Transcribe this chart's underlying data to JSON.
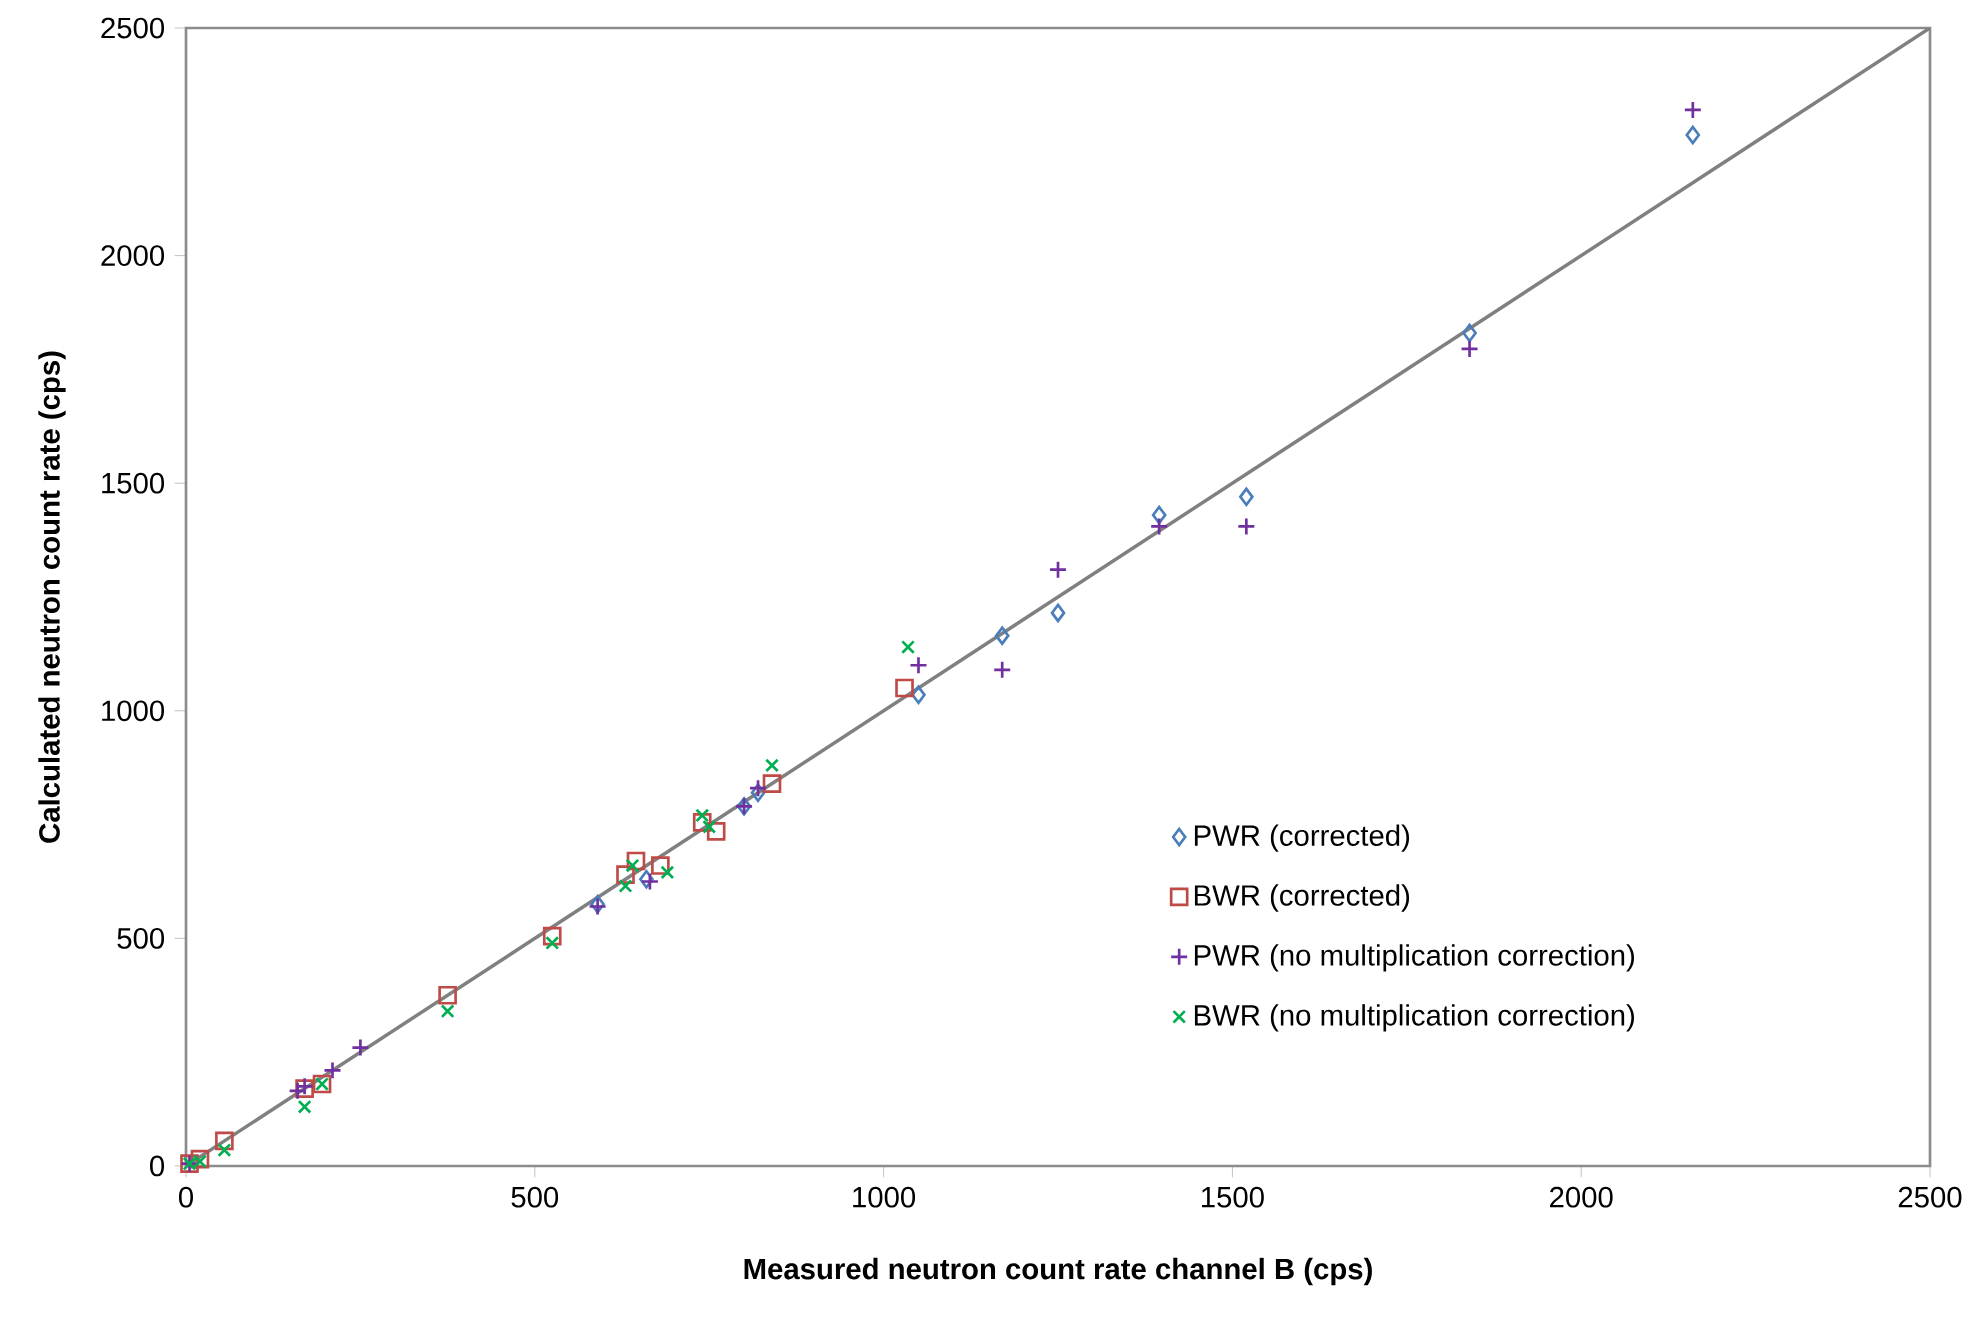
{
  "chart_data": {
    "type": "scatter",
    "xlabel": "Measured neutron count rate channel B (cps)",
    "ylabel": "Calculated neutron count rate (cps)",
    "xlim": [
      0,
      2500
    ],
    "ylim": [
      0,
      2500
    ],
    "xticks": [
      0,
      500,
      1000,
      1500,
      2000,
      2500
    ],
    "yticks": [
      0,
      500,
      1000,
      1500,
      2000,
      2500
    ],
    "grid": false,
    "legend": "right",
    "series": [
      {
        "name": "PWR (corrected)",
        "color": "#4a7ebb",
        "marker": "diamond",
        "x": [
          590,
          660,
          800,
          820,
          1050,
          1170,
          1250,
          1395,
          1520,
          1840,
          2160
        ],
        "values": [
          575,
          630,
          790,
          820,
          1035,
          1165,
          1215,
          1430,
          1470,
          1830,
          2265
        ]
      },
      {
        "name": "BWR (corrected)",
        "color": "#be4b48",
        "marker": "square",
        "x": [
          5,
          20,
          55,
          170,
          195,
          375,
          525,
          630,
          645,
          680,
          740,
          760,
          840,
          1030
        ],
        "values": [
          5,
          15,
          55,
          170,
          180,
          375,
          505,
          640,
          670,
          660,
          755,
          735,
          840,
          1050
        ]
      },
      {
        "name": "PWR (no multiplication correction)",
        "color": "#7030a0",
        "marker": "plus",
        "x": [
          5,
          160,
          170,
          210,
          250,
          590,
          665,
          800,
          820,
          1050,
          1170,
          1250,
          1395,
          1520,
          1840,
          2160
        ],
        "values": [
          5,
          165,
          175,
          210,
          260,
          570,
          625,
          790,
          830,
          1100,
          1090,
          1310,
          1405,
          1405,
          1795,
          2320
        ]
      },
      {
        "name": "BWR (no multiplication correction)",
        "color": "#00b050",
        "marker": "cross",
        "x": [
          5,
          20,
          55,
          170,
          195,
          375,
          525,
          630,
          640,
          690,
          740,
          750,
          840,
          1035
        ],
        "values": [
          5,
          10,
          35,
          130,
          180,
          340,
          490,
          615,
          660,
          645,
          770,
          745,
          880,
          1140
        ]
      },
      {
        "type": "line",
        "color": "#808080",
        "marker": "none",
        "x": [
          0,
          2500
        ],
        "values": [
          0,
          2500
        ]
      }
    ]
  }
}
